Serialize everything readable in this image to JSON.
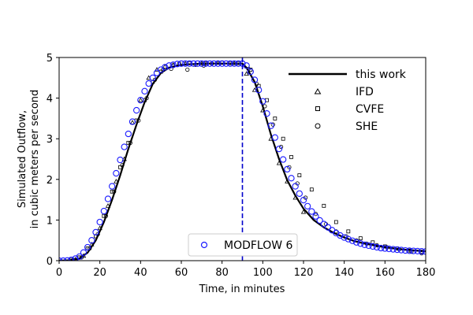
{
  "chart_data": {
    "type": "line",
    "title": "",
    "xlabel": "Time, in minutes",
    "ylabel_lines": [
      "Simulated Outflow,",
      "in cubic meters per second"
    ],
    "xlim": [
      0,
      180
    ],
    "ylim": [
      0,
      5
    ],
    "xticks": [
      "0",
      "20",
      "40",
      "60",
      "80",
      "100",
      "120",
      "140",
      "160",
      "180"
    ],
    "yticks": [
      "0",
      "1",
      "2",
      "3",
      "4",
      "5"
    ],
    "grid": false,
    "vline": {
      "x": 90,
      "color": "#0000cc",
      "style": "dashed"
    },
    "legend_top": {
      "placement": "top-right",
      "entries": [
        "this work",
        "IFD",
        "CVFE",
        "SHE"
      ]
    },
    "legend_bottom": {
      "placement": "lower-center",
      "entries": [
        "MODFLOW 6"
      ]
    },
    "series": [
      {
        "name": "this work",
        "style": "line",
        "color": "#000000",
        "x": [
          0,
          5,
          10,
          14,
          18,
          22,
          26,
          30,
          34,
          38,
          42,
          46,
          50,
          54,
          58,
          62,
          66,
          70,
          80,
          90,
          92,
          96,
          100,
          104,
          108,
          112,
          116,
          120,
          125,
          130,
          135,
          140,
          145,
          150,
          160,
          170,
          180
        ],
        "y": [
          0,
          0.01,
          0.05,
          0.2,
          0.5,
          0.95,
          1.5,
          2.1,
          2.75,
          3.35,
          3.9,
          4.35,
          4.62,
          4.75,
          4.8,
          4.83,
          4.84,
          4.85,
          4.85,
          4.85,
          4.75,
          4.4,
          3.8,
          3.1,
          2.5,
          1.98,
          1.6,
          1.28,
          1.0,
          0.82,
          0.68,
          0.57,
          0.48,
          0.42,
          0.33,
          0.27,
          0.23
        ]
      },
      {
        "name": "IFD",
        "style": "marker-triangle",
        "color": "#000000",
        "x": [
          8,
          12,
          16,
          20,
          24,
          28,
          32,
          36,
          40,
          44,
          48,
          52,
          56,
          62,
          70,
          78,
          86,
          92,
          96,
          100,
          104,
          108,
          112,
          116,
          120
        ],
        "y": [
          0.03,
          0.12,
          0.4,
          0.8,
          1.35,
          1.95,
          2.5,
          3.4,
          3.95,
          4.5,
          4.7,
          4.78,
          4.82,
          4.85,
          4.86,
          4.87,
          4.86,
          4.6,
          4.2,
          3.7,
          3.0,
          2.4,
          1.95,
          1.55,
          1.2
        ]
      },
      {
        "name": "CVFE",
        "style": "marker-square",
        "color": "#000000",
        "x": [
          6,
          10,
          14,
          18,
          22,
          26,
          30,
          34,
          38,
          42,
          46,
          50,
          56,
          64,
          72,
          80,
          88,
          94,
          98,
          102,
          106,
          110,
          114,
          118,
          124,
          130,
          136,
          142,
          148,
          154,
          160,
          166,
          172,
          178
        ],
        "y": [
          0.02,
          0.08,
          0.3,
          0.6,
          1.1,
          1.7,
          2.3,
          2.9,
          3.45,
          3.95,
          4.4,
          4.65,
          4.8,
          4.86,
          4.85,
          4.87,
          4.86,
          4.7,
          4.3,
          3.95,
          3.5,
          3.0,
          2.55,
          2.1,
          1.75,
          1.35,
          0.95,
          0.72,
          0.55,
          0.45,
          0.35,
          0.3,
          0.25,
          0.22
        ]
      },
      {
        "name": "SHE",
        "style": "marker-circle",
        "color": "#000000",
        "x": [
          7,
          11,
          15,
          19,
          23,
          27,
          31,
          35,
          39,
          43,
          47,
          51,
          55,
          59,
          63,
          67,
          71,
          75,
          84,
          93,
          97,
          101,
          105,
          109,
          113,
          117,
          121,
          126,
          131,
          136,
          141,
          146,
          151,
          156,
          161,
          167,
          173,
          178
        ],
        "y": [
          0.02,
          0.08,
          0.3,
          0.65,
          1.1,
          1.7,
          2.35,
          2.9,
          3.45,
          4.0,
          4.45,
          4.7,
          4.72,
          4.85,
          4.7,
          4.82,
          4.8,
          4.85,
          4.86,
          4.72,
          4.35,
          3.8,
          3.35,
          2.8,
          2.3,
          1.9,
          1.55,
          1.15,
          0.9,
          0.72,
          0.6,
          0.5,
          0.42,
          0.38,
          0.33,
          0.28,
          0.22,
          0.18
        ]
      },
      {
        "name": "MODFLOW 6",
        "style": "marker-open-circle",
        "color": "#1a1aff",
        "x": [
          0,
          2,
          4,
          6,
          8,
          10,
          12,
          14,
          16,
          18,
          20,
          22,
          24,
          26,
          28,
          30,
          32,
          34,
          36,
          38,
          40,
          42,
          44,
          46,
          48,
          50,
          52,
          54,
          56,
          58,
          60,
          62,
          64,
          66,
          68,
          70,
          72,
          74,
          76,
          78,
          80,
          82,
          84,
          86,
          88,
          90,
          92,
          94,
          96,
          98,
          100,
          102,
          104,
          106,
          108,
          110,
          112,
          114,
          116,
          118,
          120,
          122,
          124,
          126,
          128,
          130,
          132,
          134,
          136,
          138,
          140,
          142,
          144,
          146,
          148,
          150,
          152,
          154,
          156,
          158,
          160,
          162,
          164,
          166,
          168,
          170,
          172,
          174,
          176,
          178,
          180
        ],
        "y": [
          0,
          0,
          0.005,
          0.02,
          0.05,
          0.1,
          0.2,
          0.33,
          0.5,
          0.7,
          0.95,
          1.22,
          1.52,
          1.83,
          2.15,
          2.48,
          2.8,
          3.12,
          3.42,
          3.7,
          3.95,
          4.17,
          4.36,
          4.5,
          4.62,
          4.7,
          4.76,
          4.8,
          4.82,
          4.84,
          4.85,
          4.85,
          4.85,
          4.85,
          4.85,
          4.85,
          4.85,
          4.85,
          4.85,
          4.85,
          4.85,
          4.85,
          4.85,
          4.85,
          4.85,
          4.85,
          4.8,
          4.65,
          4.45,
          4.2,
          3.92,
          3.62,
          3.32,
          3.03,
          2.75,
          2.49,
          2.25,
          2.03,
          1.83,
          1.65,
          1.49,
          1.34,
          1.21,
          1.09,
          0.99,
          0.9,
          0.82,
          0.75,
          0.68,
          0.62,
          0.57,
          0.53,
          0.49,
          0.45,
          0.42,
          0.39,
          0.37,
          0.35,
          0.33,
          0.31,
          0.3,
          0.29,
          0.28,
          0.27,
          0.26,
          0.25,
          0.245,
          0.24,
          0.235,
          0.23,
          0.225
        ]
      }
    ]
  }
}
